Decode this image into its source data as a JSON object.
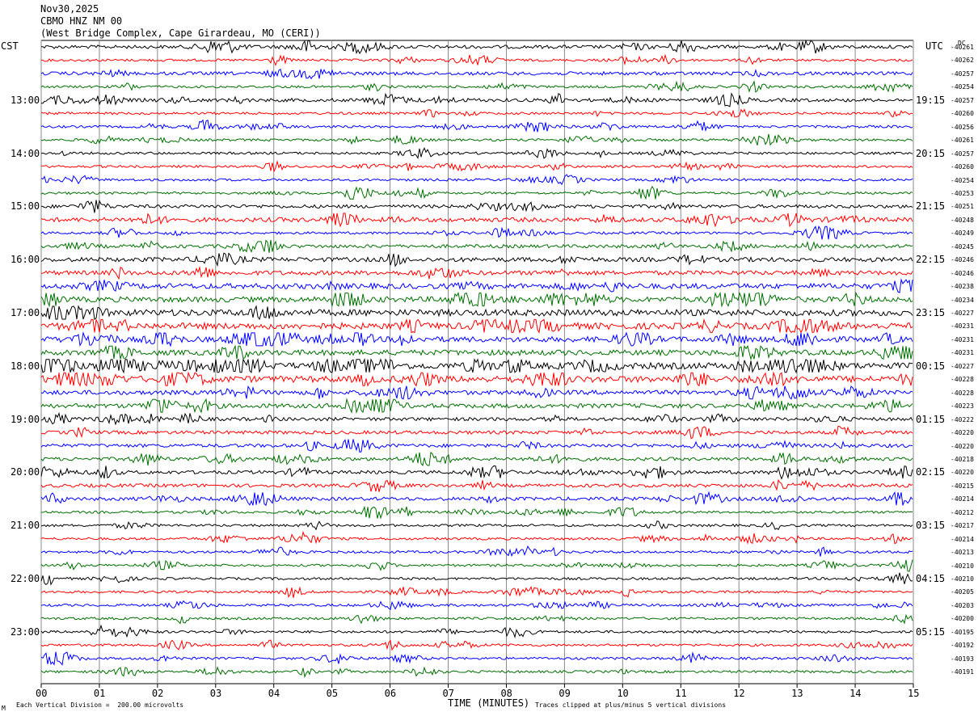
{
  "header": {
    "date": "Nov30,2025",
    "station": "CBMO HNZ NM 00",
    "location": "(West Bridge Complex, Cape Girardeau, MO (CERI))"
  },
  "labels": {
    "left_zone": "CST",
    "right_zone": "UTC",
    "dc_header": "DC",
    "xlabel": "TIME (MINUTES)",
    "scale_note": "Each Vertical Division =  200.00 microvolts",
    "clip_note": "Traces clipped at plus/minus 5 vertical divisions",
    "corner_mark": "M"
  },
  "chart_data": {
    "type": "line",
    "description_free": true,
    "xlim": [
      0,
      15
    ],
    "x_ticks": [
      "00",
      "01",
      "02",
      "03",
      "04",
      "05",
      "06",
      "07",
      "08",
      "09",
      "10",
      "11",
      "12",
      "13",
      "14",
      "15"
    ],
    "trace_colors": [
      "#000000",
      "#ff0000",
      "#0000ff",
      "#007000"
    ],
    "left_hour_labels": [
      "13:00",
      "14:00",
      "15:00",
      "16:00",
      "17:00",
      "18:00",
      "19:00",
      "20:00",
      "21:00",
      "22:00",
      "23:00"
    ],
    "right_hour_labels": [
      "19:15",
      "20:15",
      "21:15",
      "22:15",
      "23:15",
      "00:15",
      "01:15",
      "02:15",
      "03:15",
      "04:15",
      "05:15"
    ],
    "dc_offsets": [
      "-40261",
      "-40262",
      "-40257",
      "-40254",
      "-40257",
      "-40260",
      "-40256",
      "-40261",
      "-40257",
      "-40260",
      "-40254",
      "-40253",
      "-40251",
      "-40248",
      "-40249",
      "-40245",
      "-40246",
      "-40246",
      "-40238",
      "-40234",
      "-40227",
      "-40231",
      "-40231",
      "-40231",
      "-40227",
      "-40228",
      "-40228",
      "-40223",
      "-40222",
      "-40220",
      "-40220",
      "-40218",
      "-40220",
      "-40215",
      "-40214",
      "-40212",
      "-40217",
      "-40214",
      "-40213",
      "-40210",
      "-40210",
      "-40205",
      "-40203",
      "-40200",
      "-40195",
      "-40192",
      "-40193",
      "-40191"
    ],
    "trace_activity": [
      2,
      1,
      2,
      1,
      2,
      1,
      1,
      1,
      1,
      1,
      1,
      1,
      2,
      3,
      1,
      2,
      3,
      3,
      4,
      4,
      5,
      5,
      4,
      4,
      5,
      5,
      3,
      3,
      2,
      2,
      2,
      2,
      2,
      2,
      2,
      1,
      1,
      1,
      1,
      1,
      1,
      1,
      1,
      1,
      1,
      1,
      1,
      1
    ]
  }
}
